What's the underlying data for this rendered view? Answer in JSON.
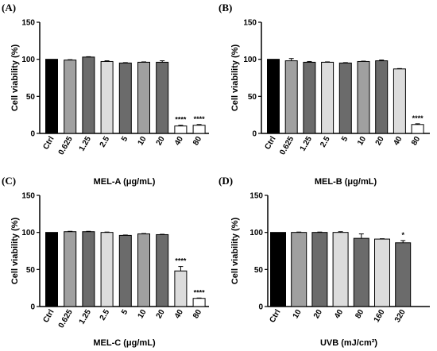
{
  "colors": {
    "black": "#000000",
    "dark_gray": "#6b6b6b",
    "mid_gray": "#a0a0a0",
    "light_gray": "#dcdcdc",
    "white": "#ffffff"
  },
  "chart_data": [
    {
      "type": "bar",
      "panel_label": "(A)",
      "title": "",
      "xlabel": "MEL-A (μg/mL)",
      "ylabel": "Cell viability (%)",
      "ylim": [
        0,
        150
      ],
      "yticks": [
        0,
        50,
        100,
        150
      ],
      "categories": [
        "Ctrl",
        "0.625",
        "1.25",
        "2.5",
        "5",
        "10",
        "20",
        "40",
        "80"
      ],
      "values": [
        100,
        99,
        103,
        97,
        95,
        96,
        96,
        10,
        11
      ],
      "errors": [
        0,
        0.5,
        0.5,
        1,
        0.5,
        0.5,
        2,
        1,
        1
      ],
      "bar_colors": [
        "black",
        "mid_gray",
        "dark_gray",
        "light_gray",
        "dark_gray",
        "mid_gray",
        "dark_gray",
        "white",
        "white"
      ],
      "annotations": [
        "",
        "",
        "",
        "",
        "",
        "",
        "",
        "****",
        "****"
      ]
    },
    {
      "type": "bar",
      "panel_label": "(B)",
      "title": "",
      "xlabel": "MEL-B (μg/mL)",
      "ylabel": "Cell viability (%)",
      "ylim": [
        0,
        150
      ],
      "yticks": [
        0,
        50,
        100,
        150
      ],
      "categories": [
        "Ctrl",
        "0.625",
        "1.25",
        "2.5",
        "5",
        "10",
        "20",
        "40",
        "80"
      ],
      "values": [
        100,
        98,
        96,
        96,
        95,
        97,
        98,
        87,
        12
      ],
      "errors": [
        0,
        3,
        1,
        0.5,
        0.5,
        0.5,
        1,
        0.5,
        1
      ],
      "bar_colors": [
        "black",
        "mid_gray",
        "dark_gray",
        "light_gray",
        "dark_gray",
        "mid_gray",
        "dark_gray",
        "light_gray",
        "white"
      ],
      "annotations": [
        "",
        "",
        "",
        "",
        "",
        "",
        "",
        "",
        "****"
      ]
    },
    {
      "type": "bar",
      "panel_label": "(C)",
      "title": "",
      "xlabel": "MEL-C (μg/mL)",
      "ylabel": "Cell viability (%)",
      "ylim": [
        0,
        150
      ],
      "yticks": [
        0,
        50,
        100,
        150
      ],
      "categories": [
        "Ctrl",
        "0.625",
        "1.25",
        "2.5",
        "5",
        "10",
        "20",
        "40",
        "80"
      ],
      "values": [
        100,
        101,
        101,
        100,
        96,
        98,
        97,
        48,
        11
      ],
      "errors": [
        0,
        0.5,
        0.5,
        0.5,
        0.5,
        0.5,
        0.5,
        6,
        0.5
      ],
      "bar_colors": [
        "black",
        "mid_gray",
        "dark_gray",
        "light_gray",
        "dark_gray",
        "mid_gray",
        "dark_gray",
        "light_gray",
        "white"
      ],
      "annotations": [
        "",
        "",
        "",
        "",
        "",
        "",
        "",
        "****",
        "****"
      ]
    },
    {
      "type": "bar",
      "panel_label": "(D)",
      "title": "",
      "xlabel": "UVB (mJ/cm²)",
      "ylabel": "Cell viability (%)",
      "ylim": [
        0,
        150
      ],
      "yticks": [
        0,
        50,
        100,
        150
      ],
      "categories": [
        "Ctrl",
        "10",
        "20",
        "40",
        "80",
        "160",
        "320"
      ],
      "values": [
        100,
        100,
        100,
        100,
        92,
        91,
        86
      ],
      "errors": [
        0,
        0.5,
        0.5,
        1,
        6,
        0.5,
        3
      ],
      "bar_colors": [
        "black",
        "mid_gray",
        "dark_gray",
        "light_gray",
        "dark_gray",
        "light_gray",
        "dark_gray"
      ],
      "annotations": [
        "",
        "",
        "",
        "",
        "",
        "",
        "*"
      ]
    }
  ]
}
